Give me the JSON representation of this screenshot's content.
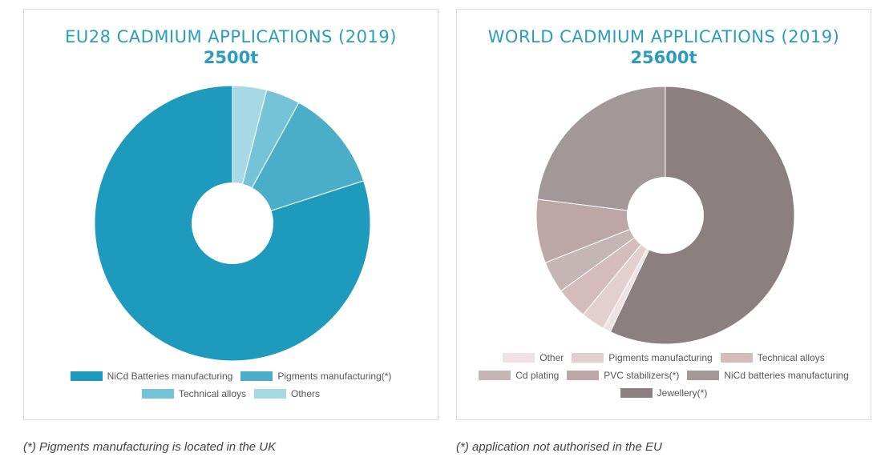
{
  "chart_data": [
    {
      "type": "pie",
      "title": "EU28 CADMIUM APPLICATIONS (2019)",
      "subtitle": "2500t",
      "donut": true,
      "categories": [
        "NiCd Batteries manufacturing",
        "Pigments manufacturing(*)",
        "Technical alloys",
        "Others"
      ],
      "values": [
        80,
        12,
        4,
        4
      ],
      "colors": [
        "#1d9abc",
        "#4aaec8",
        "#74c3d7",
        "#a7d8e6"
      ],
      "draw_order": [
        3,
        2,
        1,
        0
      ],
      "legend_rows": [
        [
          0,
          1
        ],
        [
          2,
          3
        ]
      ],
      "legend_position": "bottom"
    },
    {
      "type": "pie",
      "title": "WORLD CADMIUM APPLICATIONS (2019)",
      "subtitle": "25600t",
      "donut": true,
      "categories": [
        "Other",
        "Pigments manufacturing",
        "Technical alloys",
        "Cd plating",
        "PVC stabilizers(*)",
        "NiCd batteries manufacturing",
        "Jewellery(*)"
      ],
      "values": [
        1,
        3,
        4,
        4,
        8,
        23,
        57
      ],
      "colors": [
        "#f0e2e2",
        "#e4cfcf",
        "#d4bcbc",
        "#c5b5b5",
        "#bca6a6",
        "#a39898",
        "#8b807f"
      ],
      "draw_order": [
        6,
        0,
        1,
        2,
        3,
        4,
        5
      ],
      "legend_rows": [
        [
          0,
          1,
          2
        ],
        [
          3,
          4,
          5
        ],
        [
          6
        ]
      ],
      "legend_position": "bottom"
    }
  ],
  "footnotes": {
    "eu": "(*) Pigments manufacturing is located in the UK",
    "world": "(*) application not authorised in the EU"
  }
}
